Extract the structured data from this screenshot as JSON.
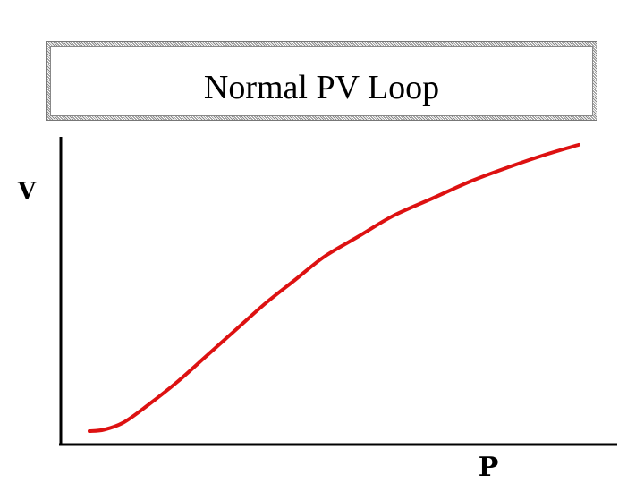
{
  "title": "Normal PV Loop",
  "chart_data": {
    "type": "line",
    "title": "Normal PV Loop",
    "xlabel": "P",
    "ylabel": "V",
    "xlim": [
      0,
      1
    ],
    "ylim": [
      0,
      1
    ],
    "grid": false,
    "series": [
      {
        "color": "#dd1111",
        "x": [
          0.0,
          0.03,
          0.07,
          0.12,
          0.18,
          0.24,
          0.3,
          0.36,
          0.42,
          0.48,
          0.55,
          0.62,
          0.7,
          0.78,
          0.86,
          0.93,
          1.0
        ],
        "y": [
          0.0,
          0.005,
          0.03,
          0.09,
          0.17,
          0.26,
          0.35,
          0.44,
          0.52,
          0.6,
          0.67,
          0.74,
          0.8,
          0.86,
          0.91,
          0.95,
          0.985
        ]
      }
    ]
  }
}
